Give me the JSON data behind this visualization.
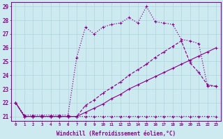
{
  "background_color": "#cdeaf0",
  "grid_color": "#b0d4dc",
  "line_color": "#880088",
  "xlabel": "Windchill (Refroidissement éolien,°C)",
  "xlim": [
    -0.5,
    23.5
  ],
  "ylim": [
    20.7,
    29.3
  ],
  "yticks": [
    21,
    22,
    23,
    24,
    25,
    26,
    27,
    28,
    29
  ],
  "xticks": [
    0,
    1,
    2,
    3,
    4,
    5,
    6,
    7,
    8,
    9,
    10,
    11,
    12,
    13,
    14,
    15,
    16,
    17,
    18,
    19,
    20,
    21,
    22,
    23
  ],
  "series": [
    {
      "x": [
        0,
        1,
        2,
        3,
        4,
        5,
        6,
        7,
        8,
        9,
        10,
        11,
        12,
        13,
        14,
        15,
        16,
        17,
        18,
        19,
        20,
        21,
        22,
        23
      ],
      "y": [
        22,
        21,
        21,
        21,
        21,
        21,
        21,
        21,
        21,
        21,
        21,
        21,
        21,
        21,
        21,
        21,
        21,
        21,
        21,
        21,
        21,
        21,
        21,
        21
      ],
      "style": "dotted"
    },
    {
      "x": [
        0,
        1,
        2,
        3,
        4,
        5,
        6,
        7,
        8,
        9,
        10,
        11,
        12,
        13,
        14,
        15,
        16,
        17,
        18,
        19,
        20,
        21,
        22,
        23
      ],
      "y": [
        22,
        21,
        21,
        21,
        21,
        21,
        21,
        21,
        21.3,
        21.6,
        21.9,
        22.3,
        22.6,
        23.0,
        23.3,
        23.6,
        23.9,
        24.2,
        24.5,
        24.8,
        25.1,
        25.4,
        25.7,
        26.0
      ],
      "style": "solid_thin"
    },
    {
      "x": [
        0,
        1,
        2,
        3,
        4,
        5,
        6,
        7,
        8,
        9,
        10,
        11,
        12,
        13,
        14,
        15,
        16,
        17,
        18,
        19,
        20,
        21,
        22,
        23
      ],
      "y": [
        22,
        21,
        21,
        21,
        21,
        21,
        21,
        21,
        21.8,
        22.2,
        22.7,
        23.1,
        23.5,
        24.0,
        24.4,
        24.8,
        25.3,
        25.7,
        26.1,
        26.5,
        24.9,
        24.2,
        23.3,
        23.2
      ],
      "style": "dashed"
    },
    {
      "x": [
        0,
        1,
        2,
        3,
        4,
        5,
        6,
        7,
        8,
        9,
        10,
        11,
        12,
        13,
        14,
        15,
        16,
        17,
        18,
        19,
        20,
        21,
        22,
        23
      ],
      "y": [
        22,
        21.1,
        21.1,
        21.1,
        21.1,
        21.1,
        21.1,
        25.3,
        27.5,
        27.0,
        27.5,
        27.7,
        27.8,
        28.2,
        27.8,
        29.0,
        27.9,
        27.8,
        27.7,
        26.6,
        26.5,
        26.3,
        23.2,
        23.2
      ],
      "style": "dotted_marker"
    }
  ],
  "markersize": 2.5,
  "linewidth_thin": 0.8,
  "linewidth_thick": 0.9
}
